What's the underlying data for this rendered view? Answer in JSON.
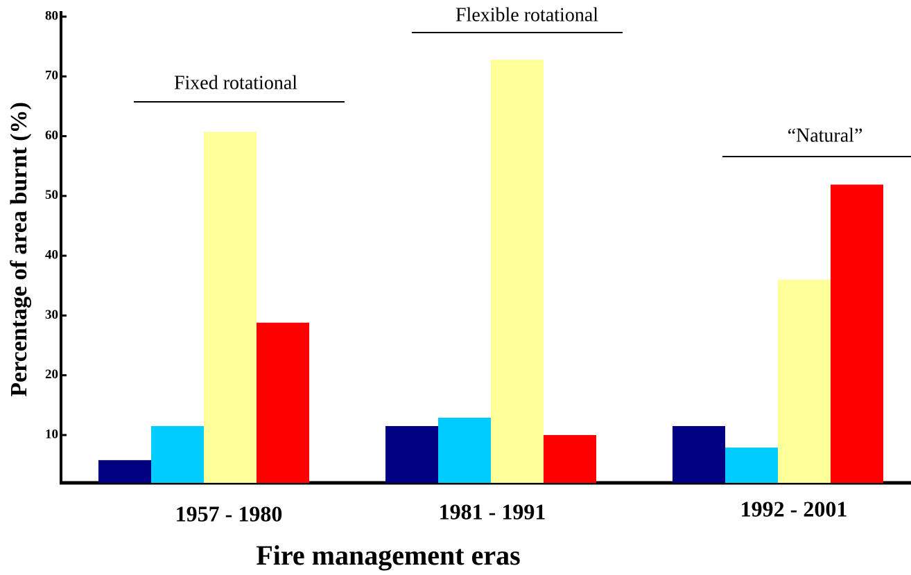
{
  "chart_data": {
    "type": "bar",
    "x_label": "Fire management eras",
    "y_label": "Percentage of area burnt (%)",
    "categories": [
      "1957 - 1980",
      "1981 - 1991",
      "1992 - 2001"
    ],
    "series": [
      {
        "color": "#000080",
        "values": [
          5.8,
          11.5,
          11.5
        ]
      },
      {
        "color": "#00ccff",
        "values": [
          11.5,
          12.9,
          7.9
        ]
      },
      {
        "color": "#ffff99",
        "values": [
          60.7,
          72.8,
          36
        ]
      },
      {
        "color": "#ff0000",
        "values": [
          28.8,
          10,
          51.9
        ]
      }
    ],
    "annotations": [
      "Fixed rotational",
      "Flexible rotational",
      "“Natural”"
    ],
    "ylim": [
      2,
      80
    ],
    "yticks": [
      10,
      20,
      30,
      40,
      50,
      60,
      70,
      80
    ],
    "grid": false
  }
}
